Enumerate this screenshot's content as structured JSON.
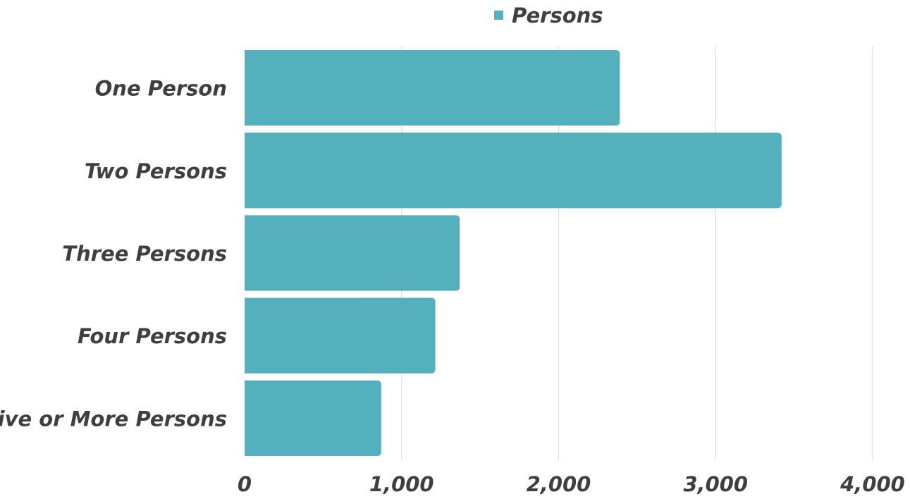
{
  "chart_data": {
    "type": "bar",
    "orientation": "horizontal",
    "categories": [
      "One Person",
      "Two Persons",
      "Three Persons",
      "Four Persons",
      "Five or More Persons"
    ],
    "series": [
      {
        "name": "Persons",
        "values": [
          2390,
          3420,
          1370,
          1215,
          870
        ],
        "color": "#54b0bd"
      }
    ],
    "xlim": [
      0,
      4000
    ],
    "x_ticks": [
      0,
      1000,
      2000,
      3000,
      4000
    ],
    "x_tick_labels": [
      "0",
      "1,000",
      "2,000",
      "3,000",
      "4,000"
    ],
    "grid": "vertical",
    "legend": "top-center"
  }
}
